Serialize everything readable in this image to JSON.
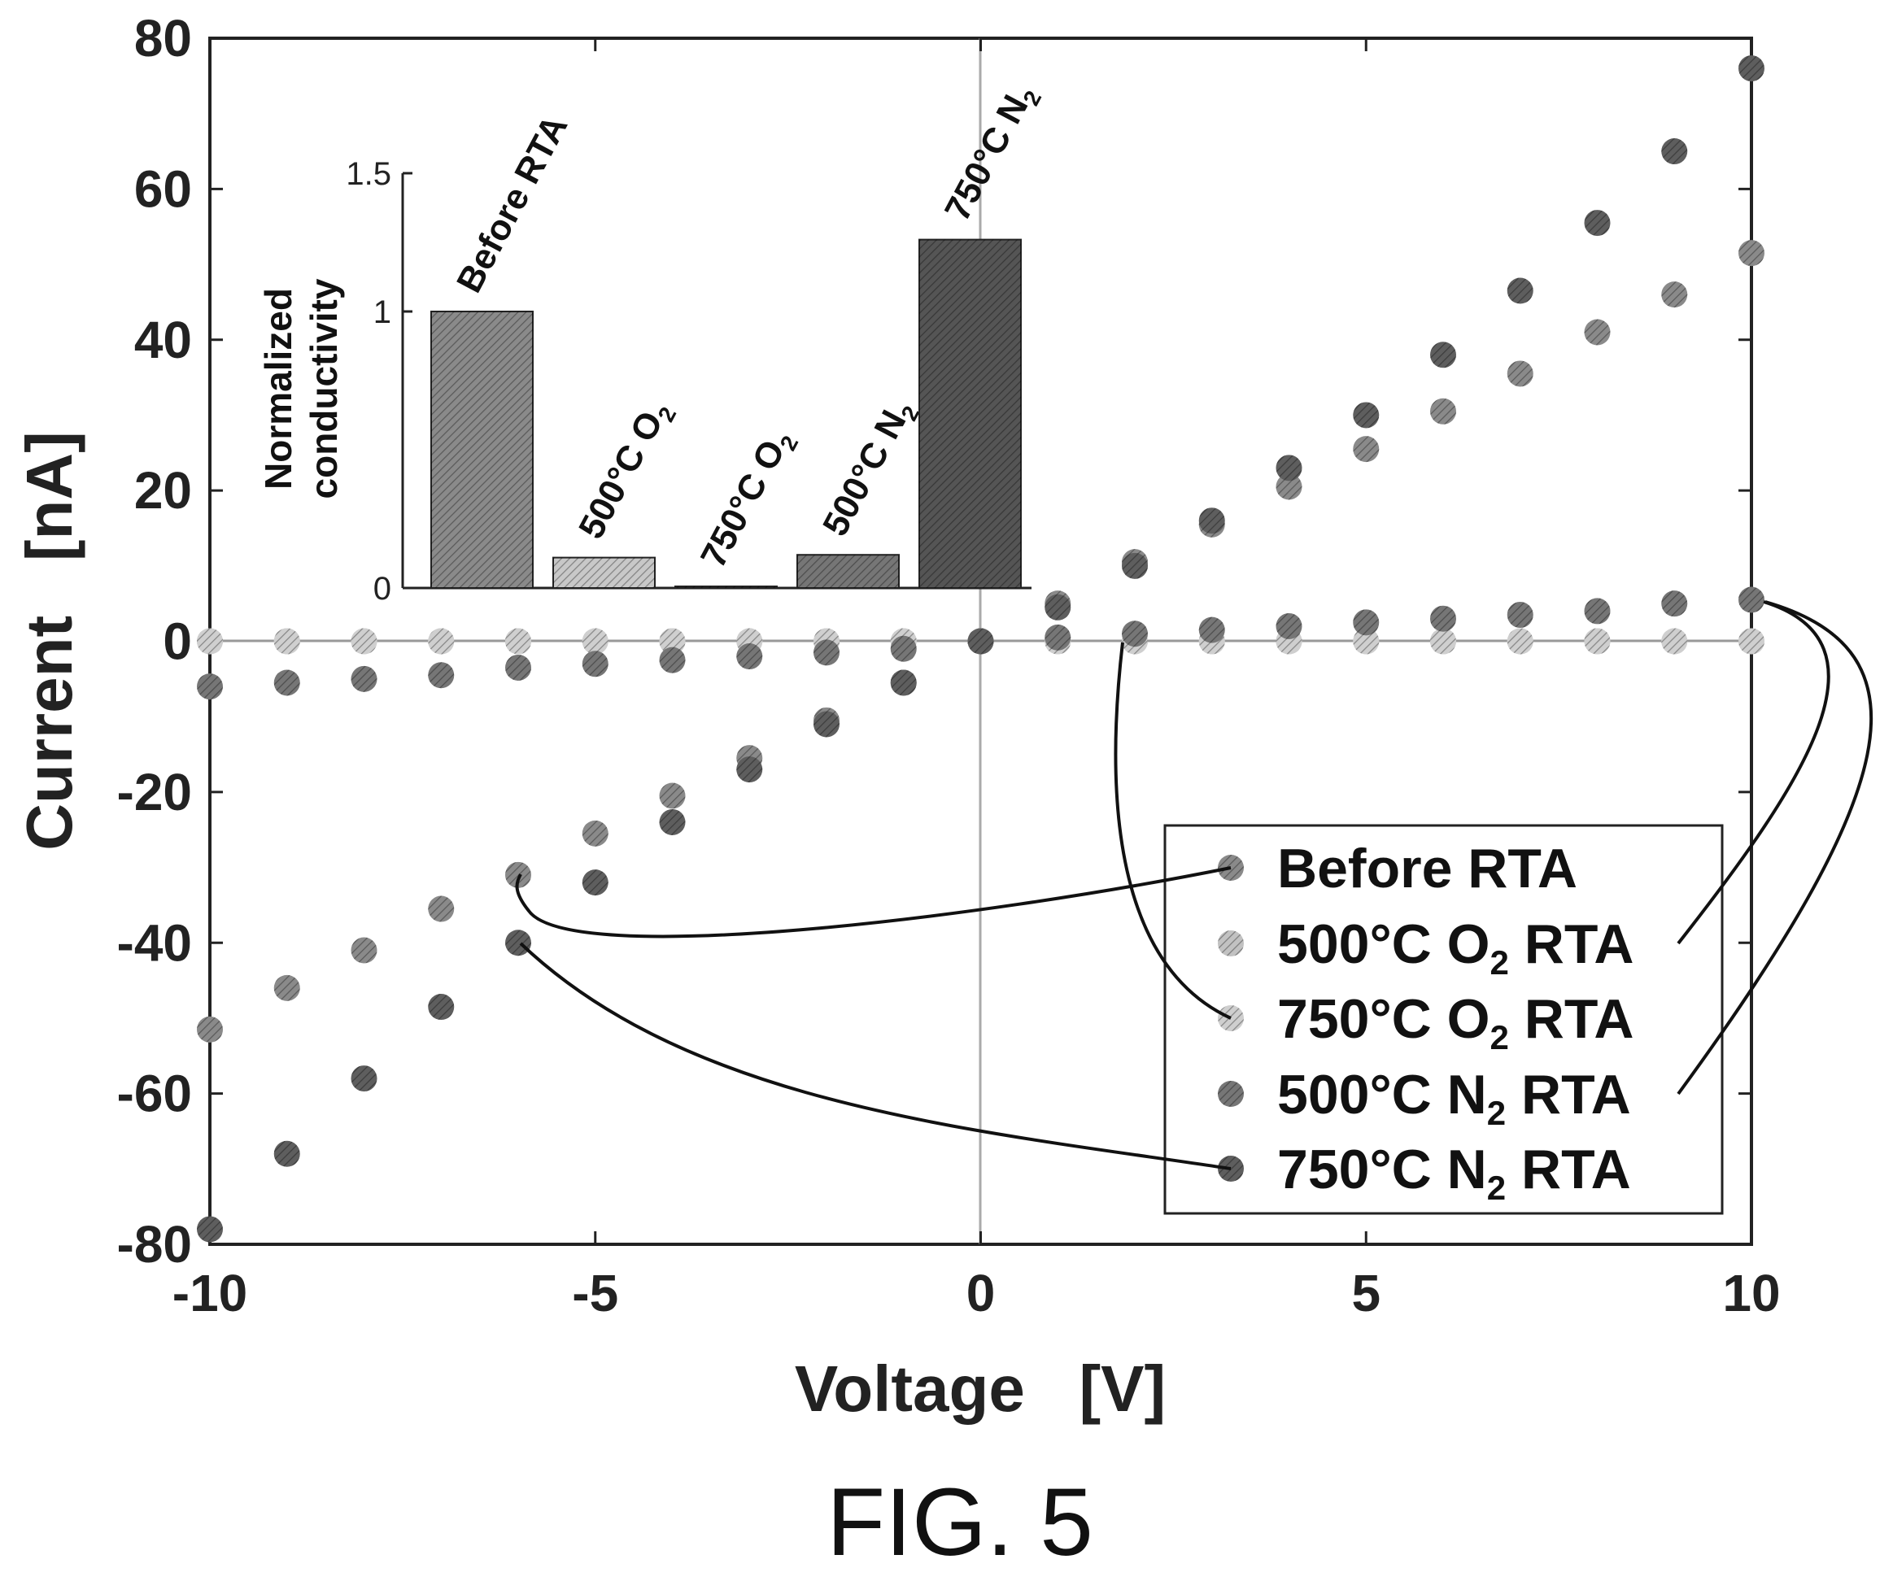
{
  "chart_data": {
    "main": {
      "type": "scatter",
      "xlabel": "Voltage   [V]",
      "ylabel": "Current   [nA]",
      "xlim": [
        -10,
        10
      ],
      "ylim": [
        -80,
        80
      ],
      "xticks": [
        -10,
        -5,
        0,
        5,
        10
      ],
      "yticks": [
        -80,
        -60,
        -40,
        -20,
        0,
        20,
        40,
        60,
        80
      ],
      "x": [
        -10,
        -9,
        -8,
        -7,
        -6,
        -5,
        -4,
        -3,
        -2,
        -1,
        0,
        1,
        2,
        3,
        4,
        5,
        6,
        7,
        8,
        9,
        10
      ],
      "legend_position": "lower-right",
      "series": [
        {
          "key": "before",
          "name": "Before RTA",
          "color": "#8a8a8a",
          "values": [
            -51.5,
            -46,
            -41,
            -35.5,
            -31,
            -25.5,
            -20.5,
            -15.5,
            -10.5,
            -5.5,
            0,
            5,
            10.5,
            15.5,
            20.5,
            25.5,
            30.5,
            35.5,
            41,
            46,
            51.5
          ]
        },
        {
          "key": "o2_500",
          "name": "500°C O",
          "sub": "2",
          "suffix": " RTA",
          "color": "#c2c2c2",
          "values": [
            0,
            0,
            0,
            0,
            0,
            0,
            0,
            0,
            0,
            0,
            0,
            0,
            0,
            0,
            0,
            0,
            0,
            0,
            0,
            0,
            0
          ]
        },
        {
          "key": "o2_750",
          "name": "750°C O",
          "sub": "2",
          "suffix": " RTA",
          "color": "#cfcfcf",
          "values": [
            0,
            0,
            0,
            0,
            0,
            0,
            0,
            0,
            0,
            0,
            0,
            0,
            0,
            0,
            0,
            0,
            0,
            0,
            0,
            0,
            0
          ]
        },
        {
          "key": "n2_500",
          "name": "500°C N",
          "sub": "2",
          "suffix": " RTA",
          "color": "#767676",
          "values": [
            -6,
            -5.5,
            -5,
            -4.5,
            -3.5,
            -3,
            -2.5,
            -2,
            -1.5,
            -1,
            0,
            0.5,
            1,
            1.5,
            2,
            2.5,
            3,
            3.5,
            4,
            5,
            5.5
          ]
        },
        {
          "key": "n2_750",
          "name": "750°C N",
          "sub": "2",
          "suffix": " RTA",
          "color": "#5e5e5e",
          "values": [
            -78,
            -68,
            -58,
            -48.5,
            -40,
            -32,
            -24,
            -17,
            -11,
            -5.5,
            0,
            4.5,
            10,
            16,
            23,
            30,
            38,
            46.5,
            55.5,
            65,
            76
          ]
        }
      ]
    },
    "inset": {
      "type": "bar",
      "ylabel_line1": "Normalized",
      "ylabel_line2": "conductivity",
      "ylim": [
        0,
        1.5
      ],
      "yticks": [
        "0",
        "1",
        "1.5"
      ],
      "bars": [
        {
          "label": "Before RTA",
          "value": 1.0,
          "color": "#8a8a8a"
        },
        {
          "label": "500°C O",
          "sub": "2",
          "value": 0.11,
          "color": "#c8c8c8"
        },
        {
          "label": "750°C O",
          "sub": "2",
          "value": 0.003,
          "color": "#d0d0d0"
        },
        {
          "label": "500°C N",
          "sub": "2",
          "value": 0.12,
          "color": "#767676"
        },
        {
          "label": "750°C N",
          "sub": "2",
          "value": 1.26,
          "color": "#555555"
        }
      ]
    }
  },
  "caption": "FIG. 5"
}
